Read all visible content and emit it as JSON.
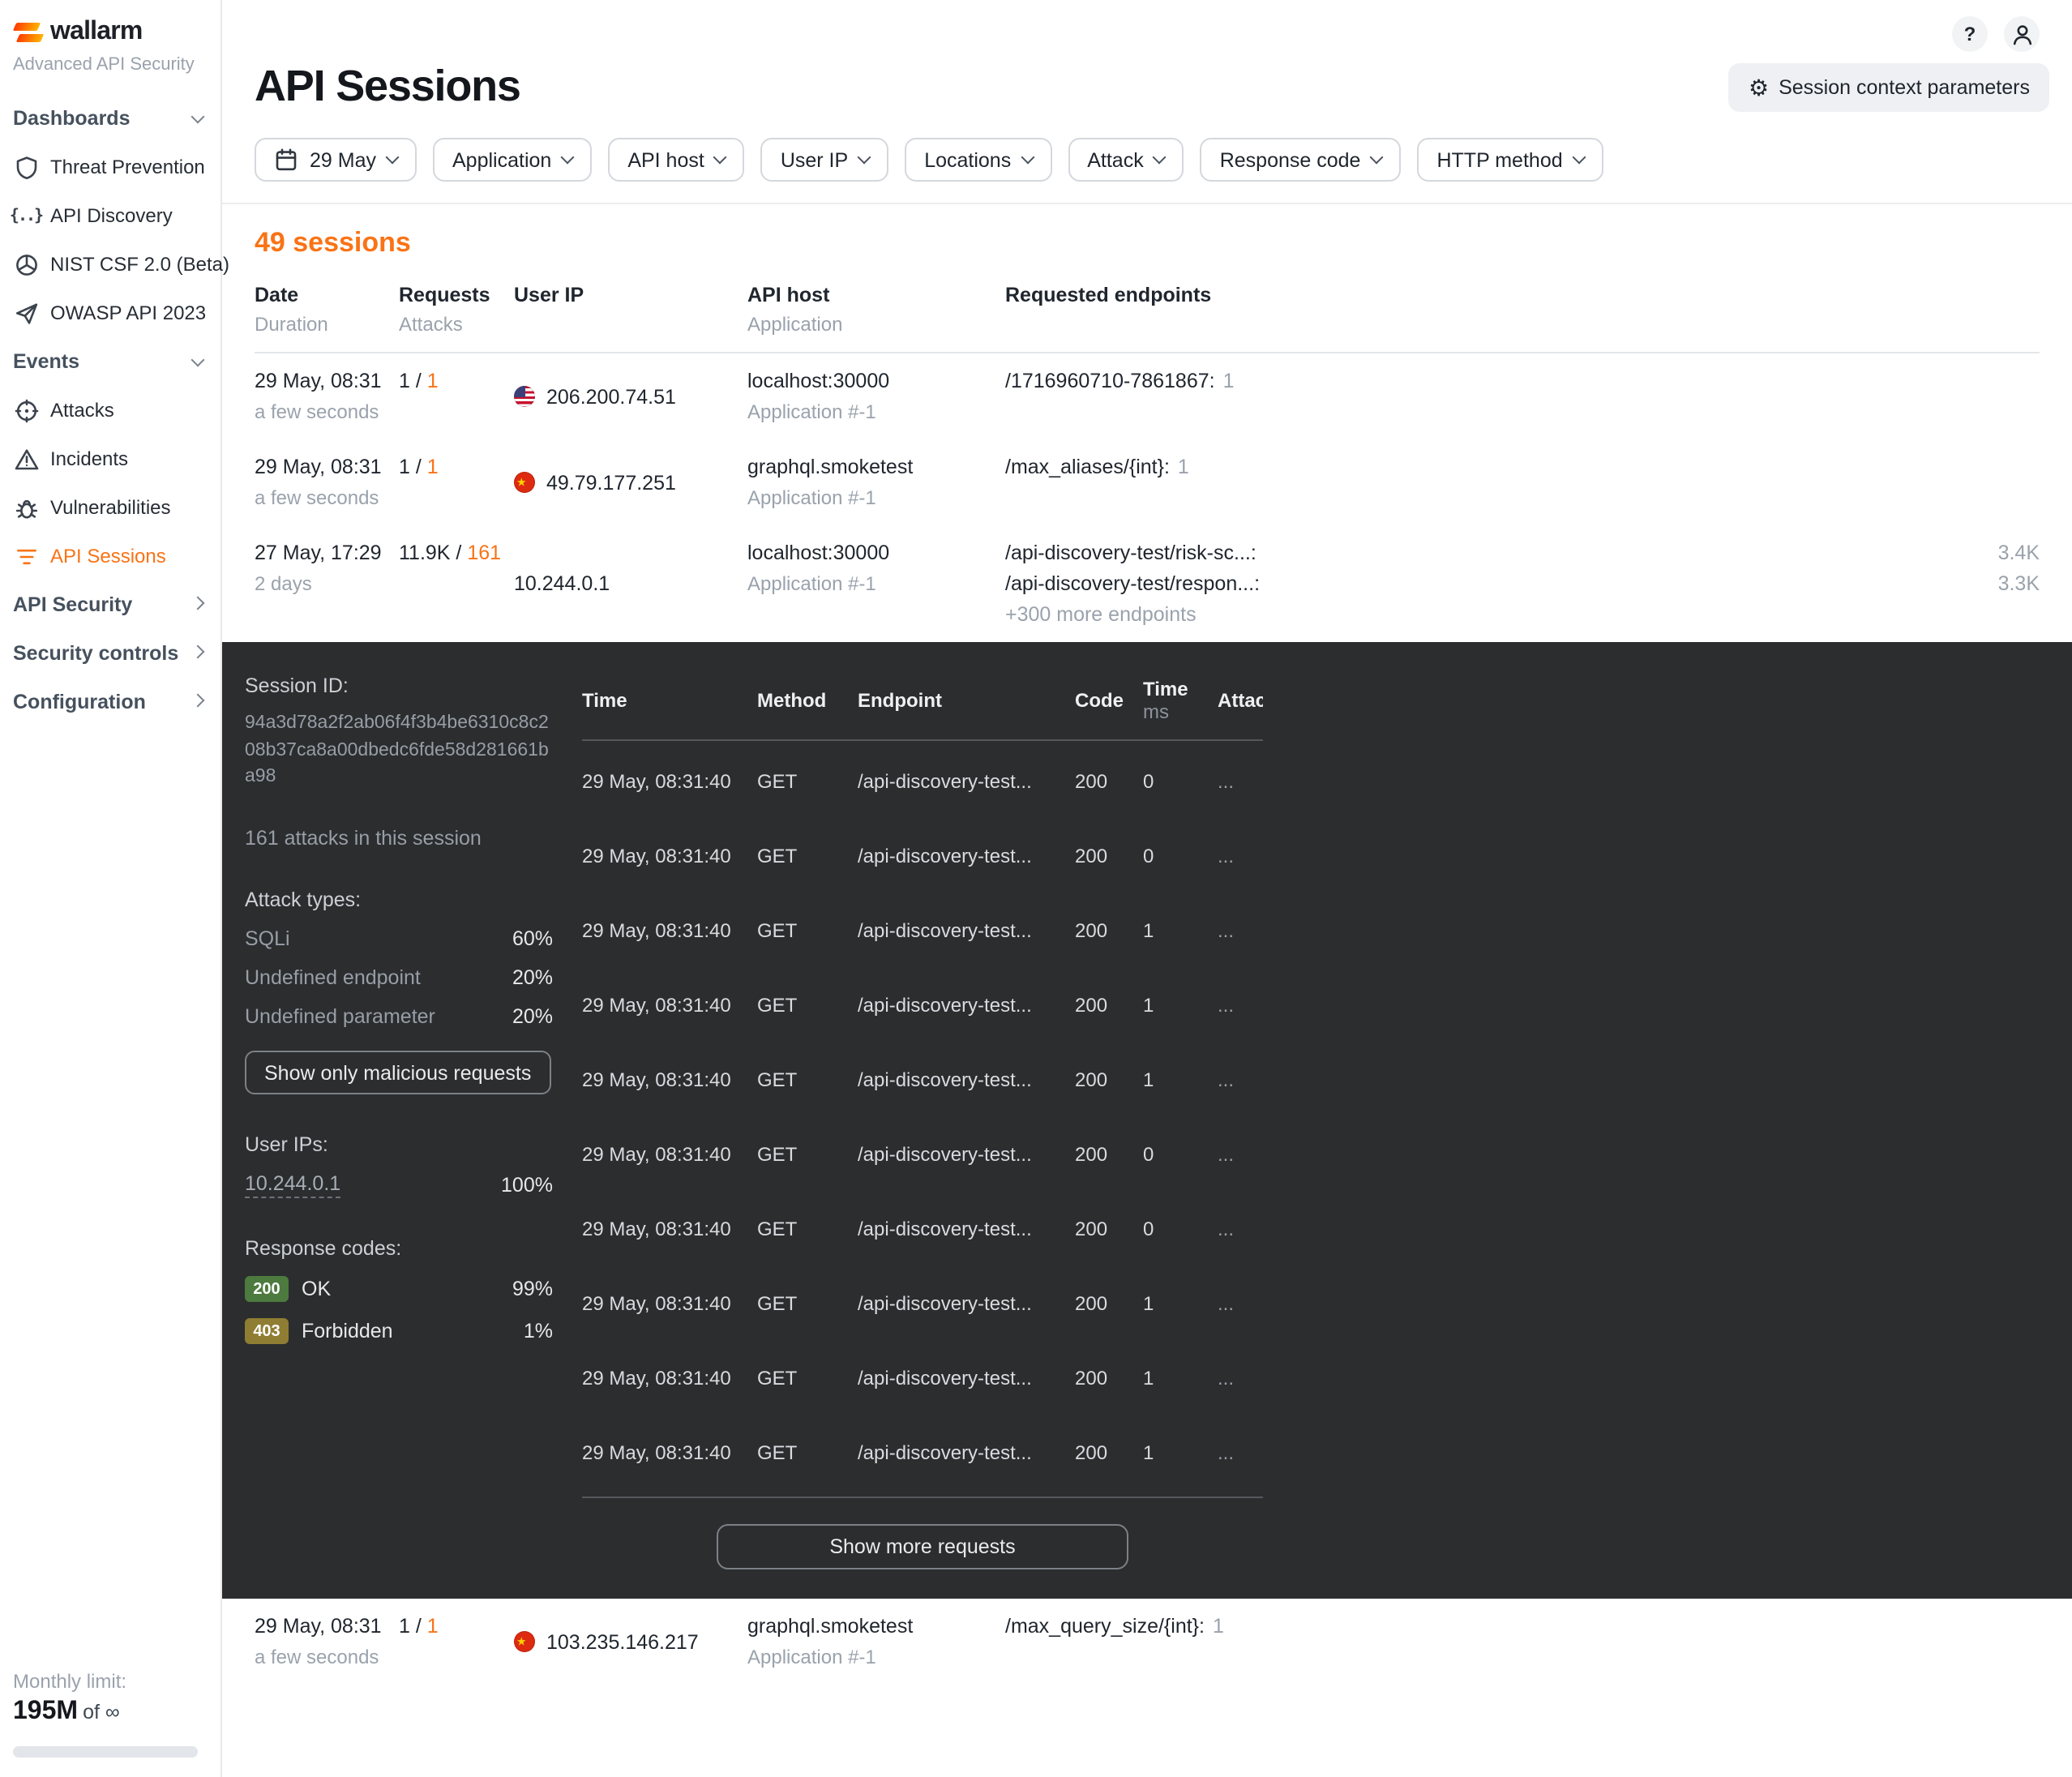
{
  "colors": {
    "accent": "#f97316",
    "panel_bg": "#2b2d2f",
    "badge_green": "#4d7a3e",
    "badge_olive": "#8f7d33"
  },
  "brand": {
    "logo_text": "wallarm",
    "subtitle": "Advanced API Security"
  },
  "topbar": {
    "help_icon": "?",
    "user_icon": "user"
  },
  "sidebar": {
    "groups": [
      {
        "label": "Dashboards",
        "chevron": "down",
        "items": [
          {
            "icon": "shield",
            "label": "Threat Prevention"
          },
          {
            "icon": "braces",
            "label": "API Discovery"
          },
          {
            "icon": "wheel",
            "label": "NIST CSF 2.0 (Beta)"
          },
          {
            "icon": "plane",
            "label": "OWASP API 2023"
          }
        ]
      },
      {
        "label": "Events",
        "chevron": "down",
        "items": [
          {
            "icon": "target",
            "label": "Attacks"
          },
          {
            "icon": "warning",
            "label": "Incidents"
          },
          {
            "icon": "bug",
            "label": "Vulnerabilities"
          },
          {
            "icon": "swirl",
            "label": "API Sessions",
            "active": true
          }
        ]
      },
      {
        "label": "API Security",
        "chevron": "right",
        "items": []
      },
      {
        "label": "Security controls",
        "chevron": "right",
        "items": []
      },
      {
        "label": "Configuration",
        "chevron": "right",
        "items": []
      }
    ],
    "footer": {
      "limit_label": "Monthly limit:",
      "limit_value": "195M",
      "limit_suffix": "of ∞"
    }
  },
  "page": {
    "title": "API Sessions",
    "context_button": "Session context parameters",
    "sessions_count": "49 sessions"
  },
  "filters": [
    {
      "label": "29 May",
      "icon": "calendar"
    },
    {
      "label": "Application"
    },
    {
      "label": "API host"
    },
    {
      "label": "User IP"
    },
    {
      "label": "Locations"
    },
    {
      "label": "Attack"
    },
    {
      "label": "Response code"
    },
    {
      "label": "HTTP method"
    }
  ],
  "sessions_table": {
    "headers": {
      "date": "Date",
      "duration": "Duration",
      "requests": "Requests",
      "attacks": "Attacks",
      "user_ip": "User IP",
      "api_host": "API host",
      "application": "Application",
      "endpoints": "Requested endpoints"
    },
    "rows": [
      {
        "date": "29 May, 08:31",
        "duration": "a few seconds",
        "requests": "1",
        "attacks": "1",
        "flag": "us",
        "ip": "206.200.74.51",
        "host": "localhost:30000",
        "app": "Application #-1",
        "endpoints": [
          {
            "path": "/1716960710-7861867:",
            "count": "1"
          }
        ]
      },
      {
        "date": "29 May, 08:31",
        "duration": "a few seconds",
        "requests": "1",
        "attacks": "1",
        "flag": "cn",
        "ip": "49.79.177.251",
        "host": "graphql.smoketest",
        "app": "Application #-1",
        "endpoints": [
          {
            "path": "/max_aliases/{int}:",
            "count": "1"
          }
        ]
      },
      {
        "date": "27 May, 17:29",
        "duration": "2 days",
        "requests": "11.9K",
        "attacks": "161",
        "flag": "",
        "ip": "10.244.0.1",
        "host": "localhost:30000",
        "app": "Application #-1",
        "spread": true,
        "expanded": true,
        "endpoints": [
          {
            "path": "/api-discovery-test/risk-sc...:",
            "count": "3.4K"
          },
          {
            "path": "/api-discovery-test/respon...:",
            "count": "3.3K"
          }
        ],
        "more": "+300 more endpoints"
      },
      {
        "date": "29 May, 08:31",
        "duration": "a few seconds",
        "requests": "1",
        "attacks": "1",
        "flag": "cn",
        "ip": "103.235.146.217",
        "host": "graphql.smoketest",
        "app": "Application #-1",
        "endpoints": [
          {
            "path": "/max_query_size/{int}:",
            "count": "1"
          }
        ]
      }
    ]
  },
  "session_detail": {
    "session_id_label": "Session ID:",
    "session_id": "94a3d78a2f2ab06f4f3b4be6310c8c208b37ca8a00dbedc6fde58d281661ba98",
    "attacks_note": "161 attacks in this session",
    "attack_types_label": "Attack types:",
    "attack_types": [
      {
        "name": "SQLi",
        "pct": "60%"
      },
      {
        "name": "Undefined endpoint",
        "pct": "20%"
      },
      {
        "name": "Undefined parameter",
        "pct": "20%"
      }
    ],
    "malicious_button": "Show only malicious requests",
    "user_ips_label": "User IPs:",
    "user_ips": [
      {
        "ip": "10.244.0.1",
        "pct": "100%"
      }
    ],
    "response_codes_label": "Response codes:",
    "response_codes": [
      {
        "code": "200",
        "name": "OK",
        "pct": "99%",
        "tone": "green"
      },
      {
        "code": "403",
        "name": "Forbidden",
        "pct": "1%",
        "tone": "olive"
      }
    ],
    "requests_table": {
      "headers": {
        "time": "Time",
        "method": "Method",
        "endpoint": "Endpoint",
        "code": "Code",
        "time2": "Time",
        "time2_unit": "ms",
        "attack": "Attack ..."
      },
      "rows": [
        {
          "time": "29 May, 08:31:40",
          "method": "GET",
          "endpoint": "/api-discovery-test...",
          "code": "200",
          "ms": "0",
          "attack": "..."
        },
        {
          "time": "29 May, 08:31:40",
          "method": "GET",
          "endpoint": "/api-discovery-test...",
          "code": "200",
          "ms": "0",
          "attack": "..."
        },
        {
          "time": "29 May, 08:31:40",
          "method": "GET",
          "endpoint": "/api-discovery-test...",
          "code": "200",
          "ms": "1",
          "attack": "..."
        },
        {
          "time": "29 May, 08:31:40",
          "method": "GET",
          "endpoint": "/api-discovery-test...",
          "code": "200",
          "ms": "1",
          "attack": "..."
        },
        {
          "time": "29 May, 08:31:40",
          "method": "GET",
          "endpoint": "/api-discovery-test...",
          "code": "200",
          "ms": "1",
          "attack": "..."
        },
        {
          "time": "29 May, 08:31:40",
          "method": "GET",
          "endpoint": "/api-discovery-test...",
          "code": "200",
          "ms": "0",
          "attack": "..."
        },
        {
          "time": "29 May, 08:31:40",
          "method": "GET",
          "endpoint": "/api-discovery-test...",
          "code": "200",
          "ms": "0",
          "attack": "..."
        },
        {
          "time": "29 May, 08:31:40",
          "method": "GET",
          "endpoint": "/api-discovery-test...",
          "code": "200",
          "ms": "1",
          "attack": "..."
        },
        {
          "time": "29 May, 08:31:40",
          "method": "GET",
          "endpoint": "/api-discovery-test...",
          "code": "200",
          "ms": "1",
          "attack": "..."
        },
        {
          "time": "29 May, 08:31:40",
          "method": "GET",
          "endpoint": "/api-discovery-test...",
          "code": "200",
          "ms": "1",
          "attack": "..."
        }
      ],
      "show_more": "Show more requests"
    }
  }
}
